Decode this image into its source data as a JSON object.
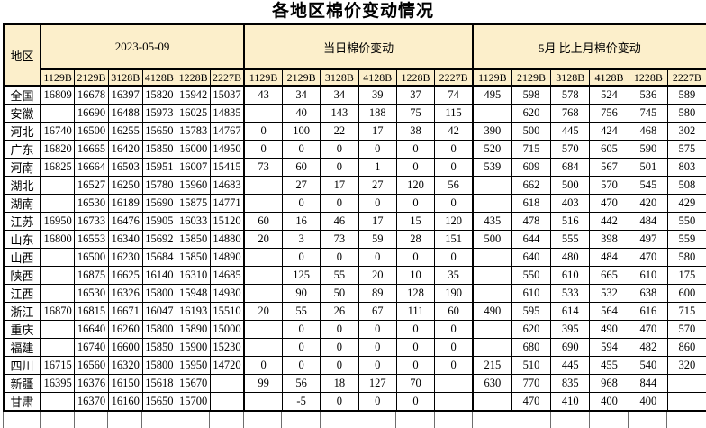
{
  "title": "各地区棉价变动情况",
  "colors": {
    "header_bg": "#FCEFCB",
    "increase_text": "#FF0000",
    "decrease_text": "#0070C0",
    "price_text": "#000000",
    "border": "#000000"
  },
  "table": {
    "region_header": "地区",
    "groups": [
      {
        "label": "2023-05-09"
      },
      {
        "label": "当日棉价变动"
      },
      {
        "label": "5月 比上月棉价变动"
      }
    ],
    "grade_columns": [
      "1129B",
      "2129B",
      "3128B",
      "4128B",
      "1228B",
      "2227B"
    ],
    "rows": [
      {
        "region": "全国",
        "date": [
          "16809",
          "16678",
          "16397",
          "15820",
          "15942",
          "15037"
        ],
        "daily": [
          "43",
          "34",
          "34",
          "39",
          "37",
          "74"
        ],
        "monthly": [
          "495",
          "598",
          "578",
          "524",
          "536",
          "589"
        ]
      },
      {
        "region": "安徽",
        "date": [
          "",
          "16690",
          "16488",
          "15973",
          "16025",
          "14835"
        ],
        "daily": [
          "",
          "40",
          "143",
          "188",
          "75",
          "115"
        ],
        "monthly": [
          "",
          "620",
          "768",
          "756",
          "745",
          "580"
        ]
      },
      {
        "region": "河北",
        "date": [
          "16740",
          "16500",
          "16255",
          "15650",
          "15783",
          "14767"
        ],
        "daily": [
          "0",
          "100",
          "22",
          "17",
          "38",
          "42"
        ],
        "monthly": [
          "390",
          "500",
          "445",
          "424",
          "468",
          "302"
        ]
      },
      {
        "region": "广东",
        "date": [
          "16820",
          "16665",
          "16420",
          "15850",
          "16000",
          "14950"
        ],
        "daily": [
          "0",
          "0",
          "0",
          "0",
          "0",
          "0"
        ],
        "monthly": [
          "520",
          "715",
          "570",
          "605",
          "590",
          "575"
        ]
      },
      {
        "region": "河南",
        "date": [
          "16825",
          "16664",
          "16503",
          "15951",
          "16007",
          "15415"
        ],
        "daily": [
          "73",
          "60",
          "0",
          "1",
          "0",
          "0"
        ],
        "monthly": [
          "539",
          "609",
          "684",
          "567",
          "501",
          "803"
        ]
      },
      {
        "region": "湖北",
        "date": [
          "",
          "16527",
          "16250",
          "15780",
          "15960",
          "14683"
        ],
        "daily": [
          "",
          "27",
          "17",
          "27",
          "120",
          "56"
        ],
        "monthly": [
          "",
          "662",
          "500",
          "570",
          "545",
          "508"
        ]
      },
      {
        "region": "湖南",
        "date": [
          "",
          "16530",
          "16189",
          "15690",
          "15875",
          "14771"
        ],
        "daily": [
          "",
          "0",
          "0",
          "0",
          "0",
          "0"
        ],
        "monthly": [
          "",
          "618",
          "403",
          "470",
          "420",
          "429"
        ]
      },
      {
        "region": "江苏",
        "date": [
          "16950",
          "16733",
          "16476",
          "15905",
          "16033",
          "15120"
        ],
        "daily": [
          "60",
          "16",
          "46",
          "17",
          "15",
          "120"
        ],
        "monthly": [
          "435",
          "478",
          "516",
          "442",
          "484",
          "550"
        ]
      },
      {
        "region": "山东",
        "date": [
          "16800",
          "16553",
          "16340",
          "15692",
          "15850",
          "14880"
        ],
        "daily": [
          "20",
          "3",
          "73",
          "59",
          "28",
          "151"
        ],
        "monthly": [
          "500",
          "644",
          "555",
          "398",
          "497",
          "559"
        ]
      },
      {
        "region": "山西",
        "date": [
          "",
          "16500",
          "16230",
          "15684",
          "15850",
          "14890"
        ],
        "daily": [
          "",
          "0",
          "0",
          "0",
          "0",
          "0"
        ],
        "monthly": [
          "",
          "640",
          "480",
          "484",
          "470",
          "580"
        ]
      },
      {
        "region": "陕西",
        "date": [
          "",
          "16875",
          "16625",
          "16140",
          "16310",
          "14685"
        ],
        "daily": [
          "",
          "125",
          "55",
          "20",
          "10",
          "35"
        ],
        "monthly": [
          "",
          "550",
          "610",
          "665",
          "610",
          "175"
        ]
      },
      {
        "region": "江西",
        "date": [
          "",
          "16530",
          "16326",
          "15800",
          "15948",
          "14930"
        ],
        "daily": [
          "",
          "90",
          "50",
          "89",
          "128",
          "190"
        ],
        "monthly": [
          "",
          "610",
          "533",
          "532",
          "638",
          "600"
        ]
      },
      {
        "region": "浙江",
        "date": [
          "16870",
          "16815",
          "16671",
          "16047",
          "16193",
          "15510"
        ],
        "daily": [
          "20",
          "55",
          "26",
          "67",
          "111",
          "60"
        ],
        "monthly": [
          "490",
          "595",
          "614",
          "564",
          "616",
          "715"
        ]
      },
      {
        "region": "重庆",
        "date": [
          "",
          "16640",
          "16260",
          "15800",
          "15890",
          "15000"
        ],
        "daily": [
          "",
          "0",
          "0",
          "0",
          "0",
          "0"
        ],
        "monthly": [
          "",
          "620",
          "395",
          "490",
          "470",
          "570"
        ]
      },
      {
        "region": "福建",
        "date": [
          "",
          "16740",
          "16600",
          "15850",
          "15900",
          "15230"
        ],
        "daily": [
          "",
          "0",
          "0",
          "0",
          "0",
          "0"
        ],
        "monthly": [
          "",
          "680",
          "690",
          "594",
          "482",
          "860"
        ]
      },
      {
        "region": "四川",
        "date": [
          "16715",
          "16560",
          "16320",
          "15800",
          "15950",
          "14720"
        ],
        "daily": [
          "0",
          "0",
          "0",
          "0",
          "0",
          "0"
        ],
        "monthly": [
          "215",
          "510",
          "445",
          "455",
          "540",
          "320"
        ]
      },
      {
        "region": "新疆",
        "date": [
          "16395",
          "16376",
          "16150",
          "15618",
          "15670",
          ""
        ],
        "daily": [
          "99",
          "56",
          "18",
          "127",
          "70",
          ""
        ],
        "monthly": [
          "630",
          "770",
          "835",
          "968",
          "844",
          ""
        ]
      },
      {
        "region": "甘肃",
        "date": [
          "",
          "16370",
          "16160",
          "15650",
          "15700",
          ""
        ],
        "daily": [
          "",
          "-5",
          "0",
          "0",
          "0",
          ""
        ],
        "monthly": [
          "",
          "470",
          "410",
          "400",
          "400",
          ""
        ]
      }
    ]
  }
}
